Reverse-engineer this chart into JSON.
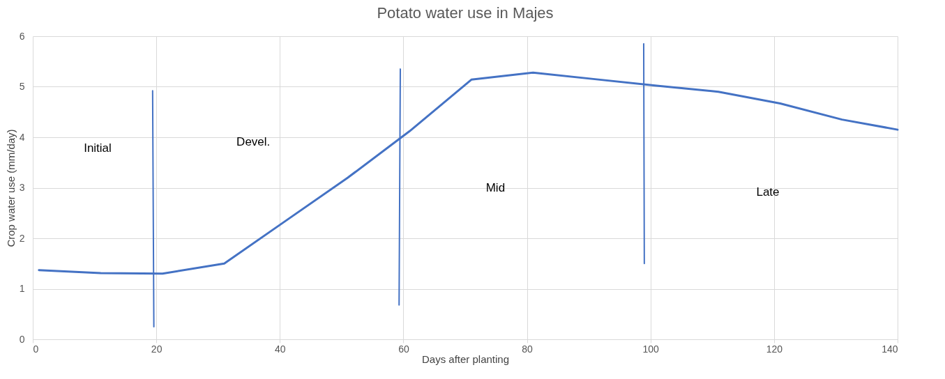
{
  "chart_data": {
    "type": "line",
    "title": "Potato water use in Majes",
    "xlabel": "Days after planting",
    "ylabel": "Crop water use (mm/day)",
    "x": [
      1,
      11,
      21,
      31,
      41,
      51,
      61,
      71,
      81,
      91,
      101,
      111,
      121,
      131,
      140
    ],
    "series": [
      {
        "color": "#4472c4",
        "values": [
          1.37,
          1.31,
          1.3,
          1.5,
          2.35,
          3.2,
          4.12,
          5.14,
          5.28,
          5.15,
          5.02,
          4.9,
          4.67,
          4.35,
          4.15
        ]
      },
      {
        "color": "#4472c4",
        "x": [
          19.6,
          19.4
        ],
        "values": [
          0.25,
          4.92
        ]
      },
      {
        "color": "#4472c4",
        "x": [
          59.3,
          59.5
        ],
        "values": [
          0.68,
          5.35
        ]
      },
      {
        "color": "#4472c4",
        "x": [
          99.0,
          98.9
        ],
        "values": [
          1.5,
          5.85
        ]
      }
    ],
    "annotations": [
      "Initial",
      "Devel.",
      "Mid",
      "Late"
    ],
    "xlim": [
      0,
      140
    ],
    "xticks": [
      0,
      20,
      40,
      60,
      80,
      100,
      120,
      140
    ],
    "ylim": [
      0,
      6
    ],
    "yticks": [
      0,
      1,
      2,
      3,
      4,
      5,
      6
    ],
    "grid": true,
    "marker": "none",
    "line_style": "solid"
  }
}
